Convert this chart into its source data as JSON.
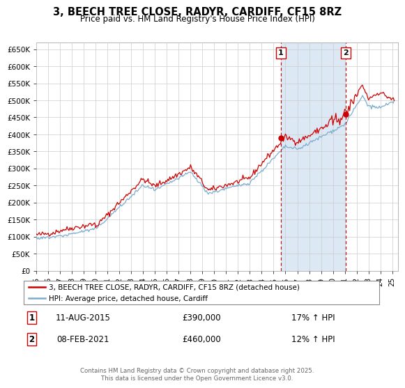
{
  "title": "3, BEECH TREE CLOSE, RADYR, CARDIFF, CF15 8RZ",
  "subtitle": "Price paid vs. HM Land Registry's House Price Index (HPI)",
  "ylim": [
    0,
    670000
  ],
  "yticks": [
    0,
    50000,
    100000,
    150000,
    200000,
    250000,
    300000,
    350000,
    400000,
    450000,
    500000,
    550000,
    600000,
    650000
  ],
  "ytick_labels": [
    "£0",
    "£50K",
    "£100K",
    "£150K",
    "£200K",
    "£250K",
    "£300K",
    "£350K",
    "£400K",
    "£450K",
    "£500K",
    "£550K",
    "£600K",
    "£650K"
  ],
  "xlim_start": 1995.0,
  "xlim_end": 2025.5,
  "xtick_years": [
    1995,
    1996,
    1997,
    1998,
    1999,
    2000,
    2001,
    2002,
    2003,
    2004,
    2005,
    2006,
    2007,
    2008,
    2009,
    2010,
    2011,
    2012,
    2013,
    2014,
    2015,
    2016,
    2017,
    2018,
    2019,
    2020,
    2021,
    2022,
    2023,
    2024,
    2025
  ],
  "red_line_color": "#cc0000",
  "blue_line_color": "#7aadce",
  "shade_color": "#dce9f5",
  "vline_color": "#cc0000",
  "marker1_date": 2015.62,
  "marker2_date": 2021.1,
  "marker1_price": 390000,
  "marker2_price": 460000,
  "marker1_label": "1",
  "marker2_label": "2",
  "annotation1_text": "11-AUG-2015",
  "annotation1_price": "£390,000",
  "annotation1_hpi": "17% ↑ HPI",
  "annotation2_text": "08-FEB-2021",
  "annotation2_price": "£460,000",
  "annotation2_hpi": "12% ↑ HPI",
  "legend_label_red": "3, BEECH TREE CLOSE, RADYR, CARDIFF, CF15 8RZ (detached house)",
  "legend_label_blue": "HPI: Average price, detached house, Cardiff",
  "footer_text": "Contains HM Land Registry data © Crown copyright and database right 2025.\nThis data is licensed under the Open Government Licence v3.0.",
  "background_color": "#ffffff",
  "grid_color": "#cccccc"
}
